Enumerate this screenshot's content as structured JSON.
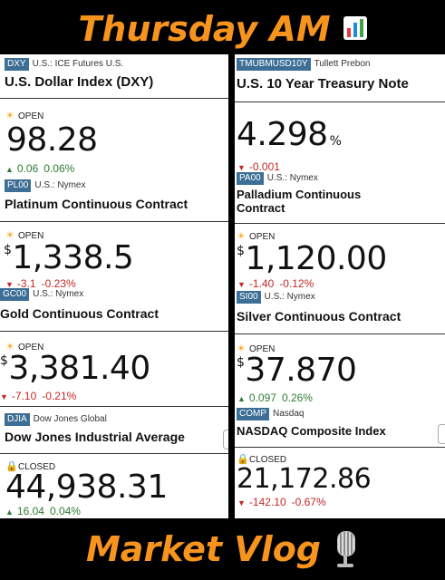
{
  "banners": {
    "top": "Thursday AM",
    "top_icon": "bar-chart-icon",
    "bottom": "Market Vlog",
    "bottom_icon": "microphone-icon"
  },
  "left_column": [
    {
      "symbol": "DXY",
      "source": "U.S.: ICE Futures U.S.",
      "name": "U.S. Dollar Index (DXY)",
      "status": "OPEN",
      "status_icon": "sun-icon",
      "currency": "",
      "price": "98.28",
      "price_suffix": "",
      "change": "0.06",
      "change_pct": "0.06%",
      "direction": "up"
    },
    {
      "symbol": "PL00",
      "source": "U.S.: Nymex",
      "name": "Platinum Continuous Contract",
      "status": "OPEN",
      "status_icon": "sun-icon",
      "currency": "$",
      "price": "1,338.5",
      "price_suffix": "",
      "change": "-3.1",
      "change_pct": "-0.23%",
      "direction": "down"
    },
    {
      "symbol": "GC00",
      "source": "U.S.: Nymex",
      "name": "Gold Continuous Contract",
      "status": "OPEN",
      "status_icon": "sun-icon",
      "currency": "$",
      "price": "3,381.40",
      "price_suffix": "",
      "change": "-7.10",
      "change_pct": "-0.21%",
      "direction": "down"
    },
    {
      "symbol": "DJIA",
      "source": "Dow Jones Global",
      "name": "Dow Jones Industrial Average",
      "status": "CLOSED",
      "status_icon": "lock-icon",
      "currency": "",
      "price": "44,938.31",
      "price_suffix": "",
      "change": "16.04",
      "change_pct": "0.04%",
      "direction": "up"
    }
  ],
  "right_column": [
    {
      "symbol": "TMUBMUSD10Y",
      "source": "Tullett Prebon",
      "name": "U.S. 10 Year Treasury Note",
      "status": "",
      "status_icon": "",
      "currency": "",
      "price": "4.298",
      "price_suffix": "%",
      "change": "-0.001",
      "change_pct": "",
      "direction": "down"
    },
    {
      "symbol": "PA00",
      "source": "U.S.: Nymex",
      "name": "Palladium Continuous Contract",
      "status": "OPEN",
      "status_icon": "sun-icon",
      "currency": "$",
      "price": "1,120.00",
      "price_suffix": "",
      "change": "-1.40",
      "change_pct": "-0.12%",
      "direction": "down"
    },
    {
      "symbol": "SI00",
      "source": "U.S.: Nymex",
      "name": "Silver Continuous Contract",
      "status": "OPEN",
      "status_icon": "sun-icon",
      "currency": "$",
      "price": "37.870",
      "price_suffix": "",
      "change": "0.097",
      "change_pct": "0.26%",
      "direction": "up"
    },
    {
      "symbol": "COMP",
      "source": "Nasdaq",
      "name": "NASDAQ Composite Index",
      "status": "CLOSED",
      "status_icon": "lock-icon",
      "currency": "",
      "price": "21,172.86",
      "price_suffix": "",
      "change": "-142.10",
      "change_pct": "-0.67%",
      "direction": "down"
    }
  ]
}
